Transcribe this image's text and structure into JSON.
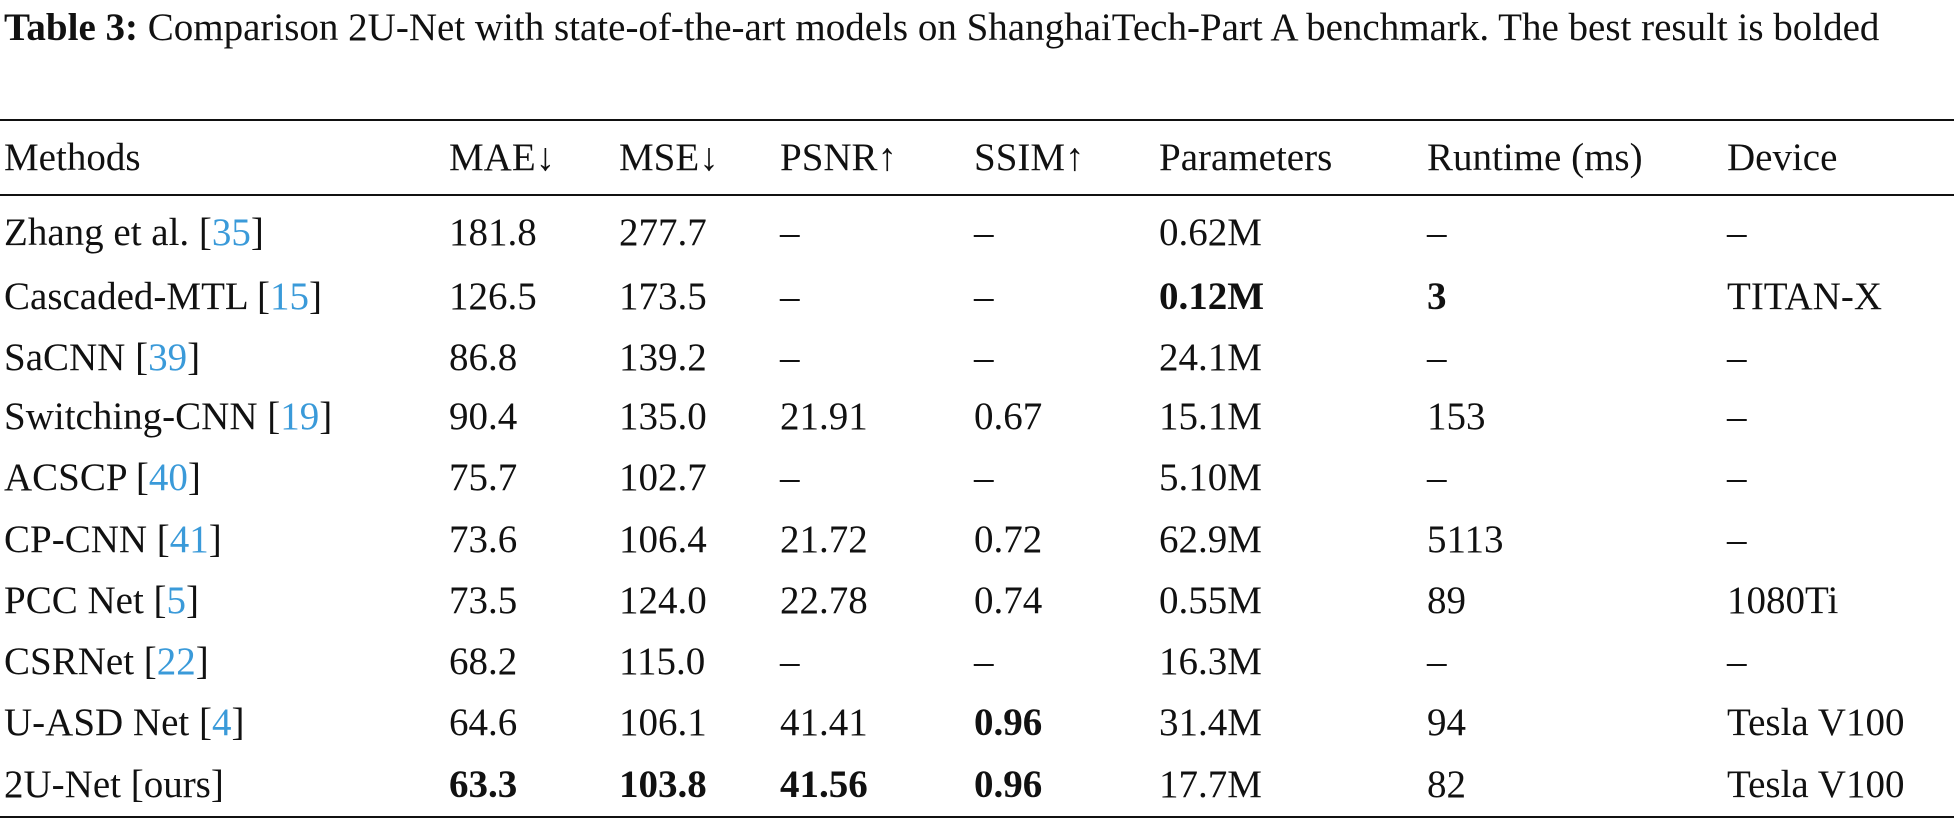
{
  "caption": {
    "label": "Table 3:",
    "text": "Comparison 2U-Net with state-of-the-art models on ShanghaiTech-Part A benchmark. The best result is bolded"
  },
  "table": {
    "header": [
      "Methods",
      "MAE↓",
      "MSE↓",
      "PSNR↑",
      "SSIM↑",
      "Parameters",
      "Runtime (ms)",
      "Device"
    ],
    "rows": [
      {
        "method": {
          "text": "Zhang et al. [",
          "ref": "35",
          "end": "]"
        },
        "cells": [
          "181.8",
          "277.7",
          "–",
          "–",
          "0.62M",
          "–",
          "–"
        ]
      },
      {
        "method": {
          "text": "Cascaded-MTL [",
          "ref": "15",
          "end": "]"
        },
        "cells": [
          "126.5",
          "173.5",
          "–",
          "–",
          "0.12M",
          "3",
          "TITAN-X"
        ]
      },
      {
        "method": {
          "text": "SaCNN [",
          "ref": "39",
          "end": "]"
        },
        "cells": [
          "86.8",
          "139.2",
          "–",
          "–",
          "24.1M",
          "–",
          "–"
        ]
      },
      {
        "method": {
          "text": "Switching-CNN [",
          "ref": "19",
          "end": "]"
        },
        "cells": [
          "90.4",
          "135.0",
          "21.91",
          "0.67",
          "15.1M",
          "153",
          "–"
        ]
      },
      {
        "method": {
          "text": "ACSCP [",
          "ref": "40",
          "end": "]"
        },
        "cells": [
          "75.7",
          "102.7",
          "–",
          "–",
          "5.10M",
          "–",
          "–"
        ]
      },
      {
        "method": {
          "text": "CP-CNN [",
          "ref": "41",
          "end": "]"
        },
        "cells": [
          "73.6",
          "106.4",
          "21.72",
          "0.72",
          "62.9M",
          "5113",
          "–"
        ]
      },
      {
        "method": {
          "text": "PCC Net [",
          "ref": "5",
          "end": "]"
        },
        "cells": [
          "73.5",
          "124.0",
          "22.78",
          "0.74",
          "0.55M",
          "89",
          "1080Ti"
        ]
      },
      {
        "method": {
          "text": "CSRNet [",
          "ref": "22",
          "end": "]"
        },
        "cells": [
          "68.2",
          "115.0",
          "–",
          "–",
          "16.3M",
          "–",
          "–"
        ]
      },
      {
        "method": {
          "text": "U-ASD Net [",
          "ref": "4",
          "end": "]"
        },
        "cells": [
          "64.6",
          "106.1",
          "41.41",
          "0.96",
          "31.4M",
          "94",
          "Tesla V100"
        ]
      },
      {
        "method": {
          "text": "2U-Net [ours]"
        },
        "cells": [
          "63.3",
          "103.8",
          "41.56",
          "0.96",
          "17.7M",
          "82",
          "Tesla V100"
        ]
      }
    ],
    "bold_cells": [
      [
        1,
        4
      ],
      [
        1,
        5
      ],
      [
        8,
        3
      ],
      [
        9,
        0
      ],
      [
        9,
        1
      ],
      [
        9,
        2
      ],
      [
        9,
        3
      ]
    ]
  }
}
